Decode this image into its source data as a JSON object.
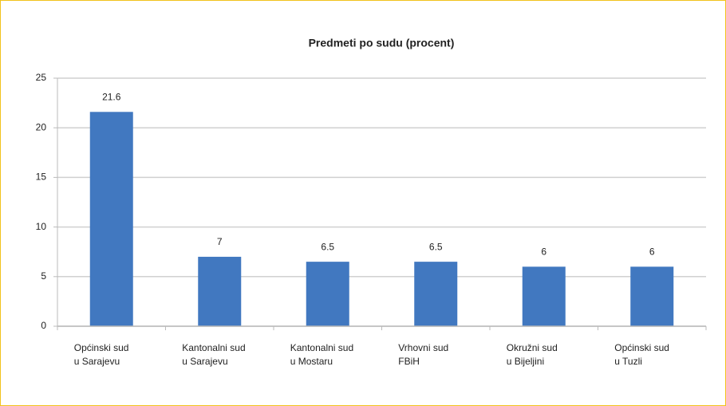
{
  "chart_data": {
    "type": "bar",
    "title": "Predmeti po sudu (procent)",
    "categories": [
      [
        "Općinski sud",
        "u Sarajevu"
      ],
      [
        "Kantonalni sud",
        "u Sarajevu"
      ],
      [
        "Kantonalni sud",
        "u Mostaru"
      ],
      [
        "Vrhovni sud",
        "FBiH"
      ],
      [
        "Okružni sud",
        "u Bijeljini"
      ],
      [
        "Općinski sud",
        "u Tuzli"
      ]
    ],
    "values": [
      21.6,
      7,
      6.5,
      6.5,
      6,
      6
    ],
    "color": "#4178c0",
    "ylim": [
      0,
      25
    ],
    "yticks": [
      0,
      5,
      10,
      15,
      20,
      25
    ],
    "grid": true
  }
}
